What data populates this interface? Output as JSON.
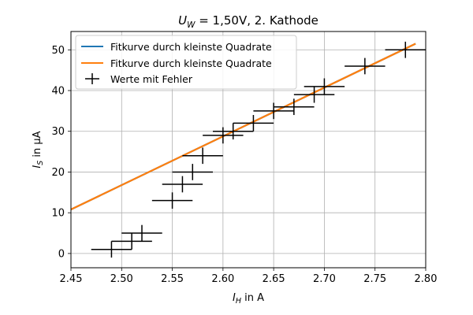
{
  "chart_data": {
    "type": "scatter",
    "title_main": "U",
    "title_sub": "W",
    "title_rest": " = 1,50V, 2. Kathode",
    "xlabel_main": "I",
    "xlabel_sub": "H",
    "xlabel_rest": " in A",
    "ylabel_main": "I",
    "ylabel_sub": "S",
    "ylabel_rest": " in μA",
    "xlim": [
      2.45,
      2.8
    ],
    "ylim": [
      -3.5,
      54.5
    ],
    "xticks": [
      2.45,
      2.5,
      2.55,
      2.6,
      2.65,
      2.7,
      2.75,
      2.8
    ],
    "xtick_labels": [
      "2.45",
      "2.50",
      "2.55",
      "2.60",
      "2.65",
      "2.70",
      "2.75",
      "2.80"
    ],
    "yticks": [
      0,
      10,
      20,
      30,
      40,
      50
    ],
    "ytick_labels": [
      "0",
      "10",
      "20",
      "30",
      "40",
      "50"
    ],
    "grid": true,
    "legend_position": "upper-left",
    "series": [
      {
        "name": "Fitkurve durch kleinste Quadrate",
        "kind": "line",
        "color": "#1f77b4",
        "x": [
          2.45,
          2.79
        ],
        "y": [
          10.8,
          51.5
        ]
      },
      {
        "name": "Fitkurve durch kleinste Quadrate",
        "kind": "line",
        "color": "#ff7f0e",
        "x": [
          2.45,
          2.79
        ],
        "y": [
          10.8,
          51.5
        ]
      },
      {
        "name": "Werte mit Fehler",
        "kind": "errorbar",
        "color": "#000000",
        "points": [
          {
            "x": 2.49,
            "y": 1,
            "xerr": 0.02,
            "yerr": 2
          },
          {
            "x": 2.51,
            "y": 3,
            "xerr": 0.02,
            "yerr": 2
          },
          {
            "x": 2.52,
            "y": 5,
            "xerr": 0.02,
            "yerr": 2
          },
          {
            "x": 2.55,
            "y": 13,
            "xerr": 0.02,
            "yerr": 2
          },
          {
            "x": 2.56,
            "y": 17,
            "xerr": 0.02,
            "yerr": 2
          },
          {
            "x": 2.57,
            "y": 20,
            "xerr": 0.02,
            "yerr": 2
          },
          {
            "x": 2.58,
            "y": 24,
            "xerr": 0.02,
            "yerr": 2
          },
          {
            "x": 2.6,
            "y": 29,
            "xerr": 0.02,
            "yerr": 2
          },
          {
            "x": 2.61,
            "y": 30,
            "xerr": 0.02,
            "yerr": 2
          },
          {
            "x": 2.63,
            "y": 32,
            "xerr": 0.02,
            "yerr": 2
          },
          {
            "x": 2.65,
            "y": 35,
            "xerr": 0.02,
            "yerr": 2
          },
          {
            "x": 2.67,
            "y": 36,
            "xerr": 0.02,
            "yerr": 2
          },
          {
            "x": 2.69,
            "y": 39,
            "xerr": 0.02,
            "yerr": 2
          },
          {
            "x": 2.7,
            "y": 41,
            "xerr": 0.02,
            "yerr": 2
          },
          {
            "x": 2.74,
            "y": 46,
            "xerr": 0.02,
            "yerr": 2
          },
          {
            "x": 2.78,
            "y": 50,
            "xerr": 0.02,
            "yerr": 2
          }
        ]
      }
    ]
  }
}
